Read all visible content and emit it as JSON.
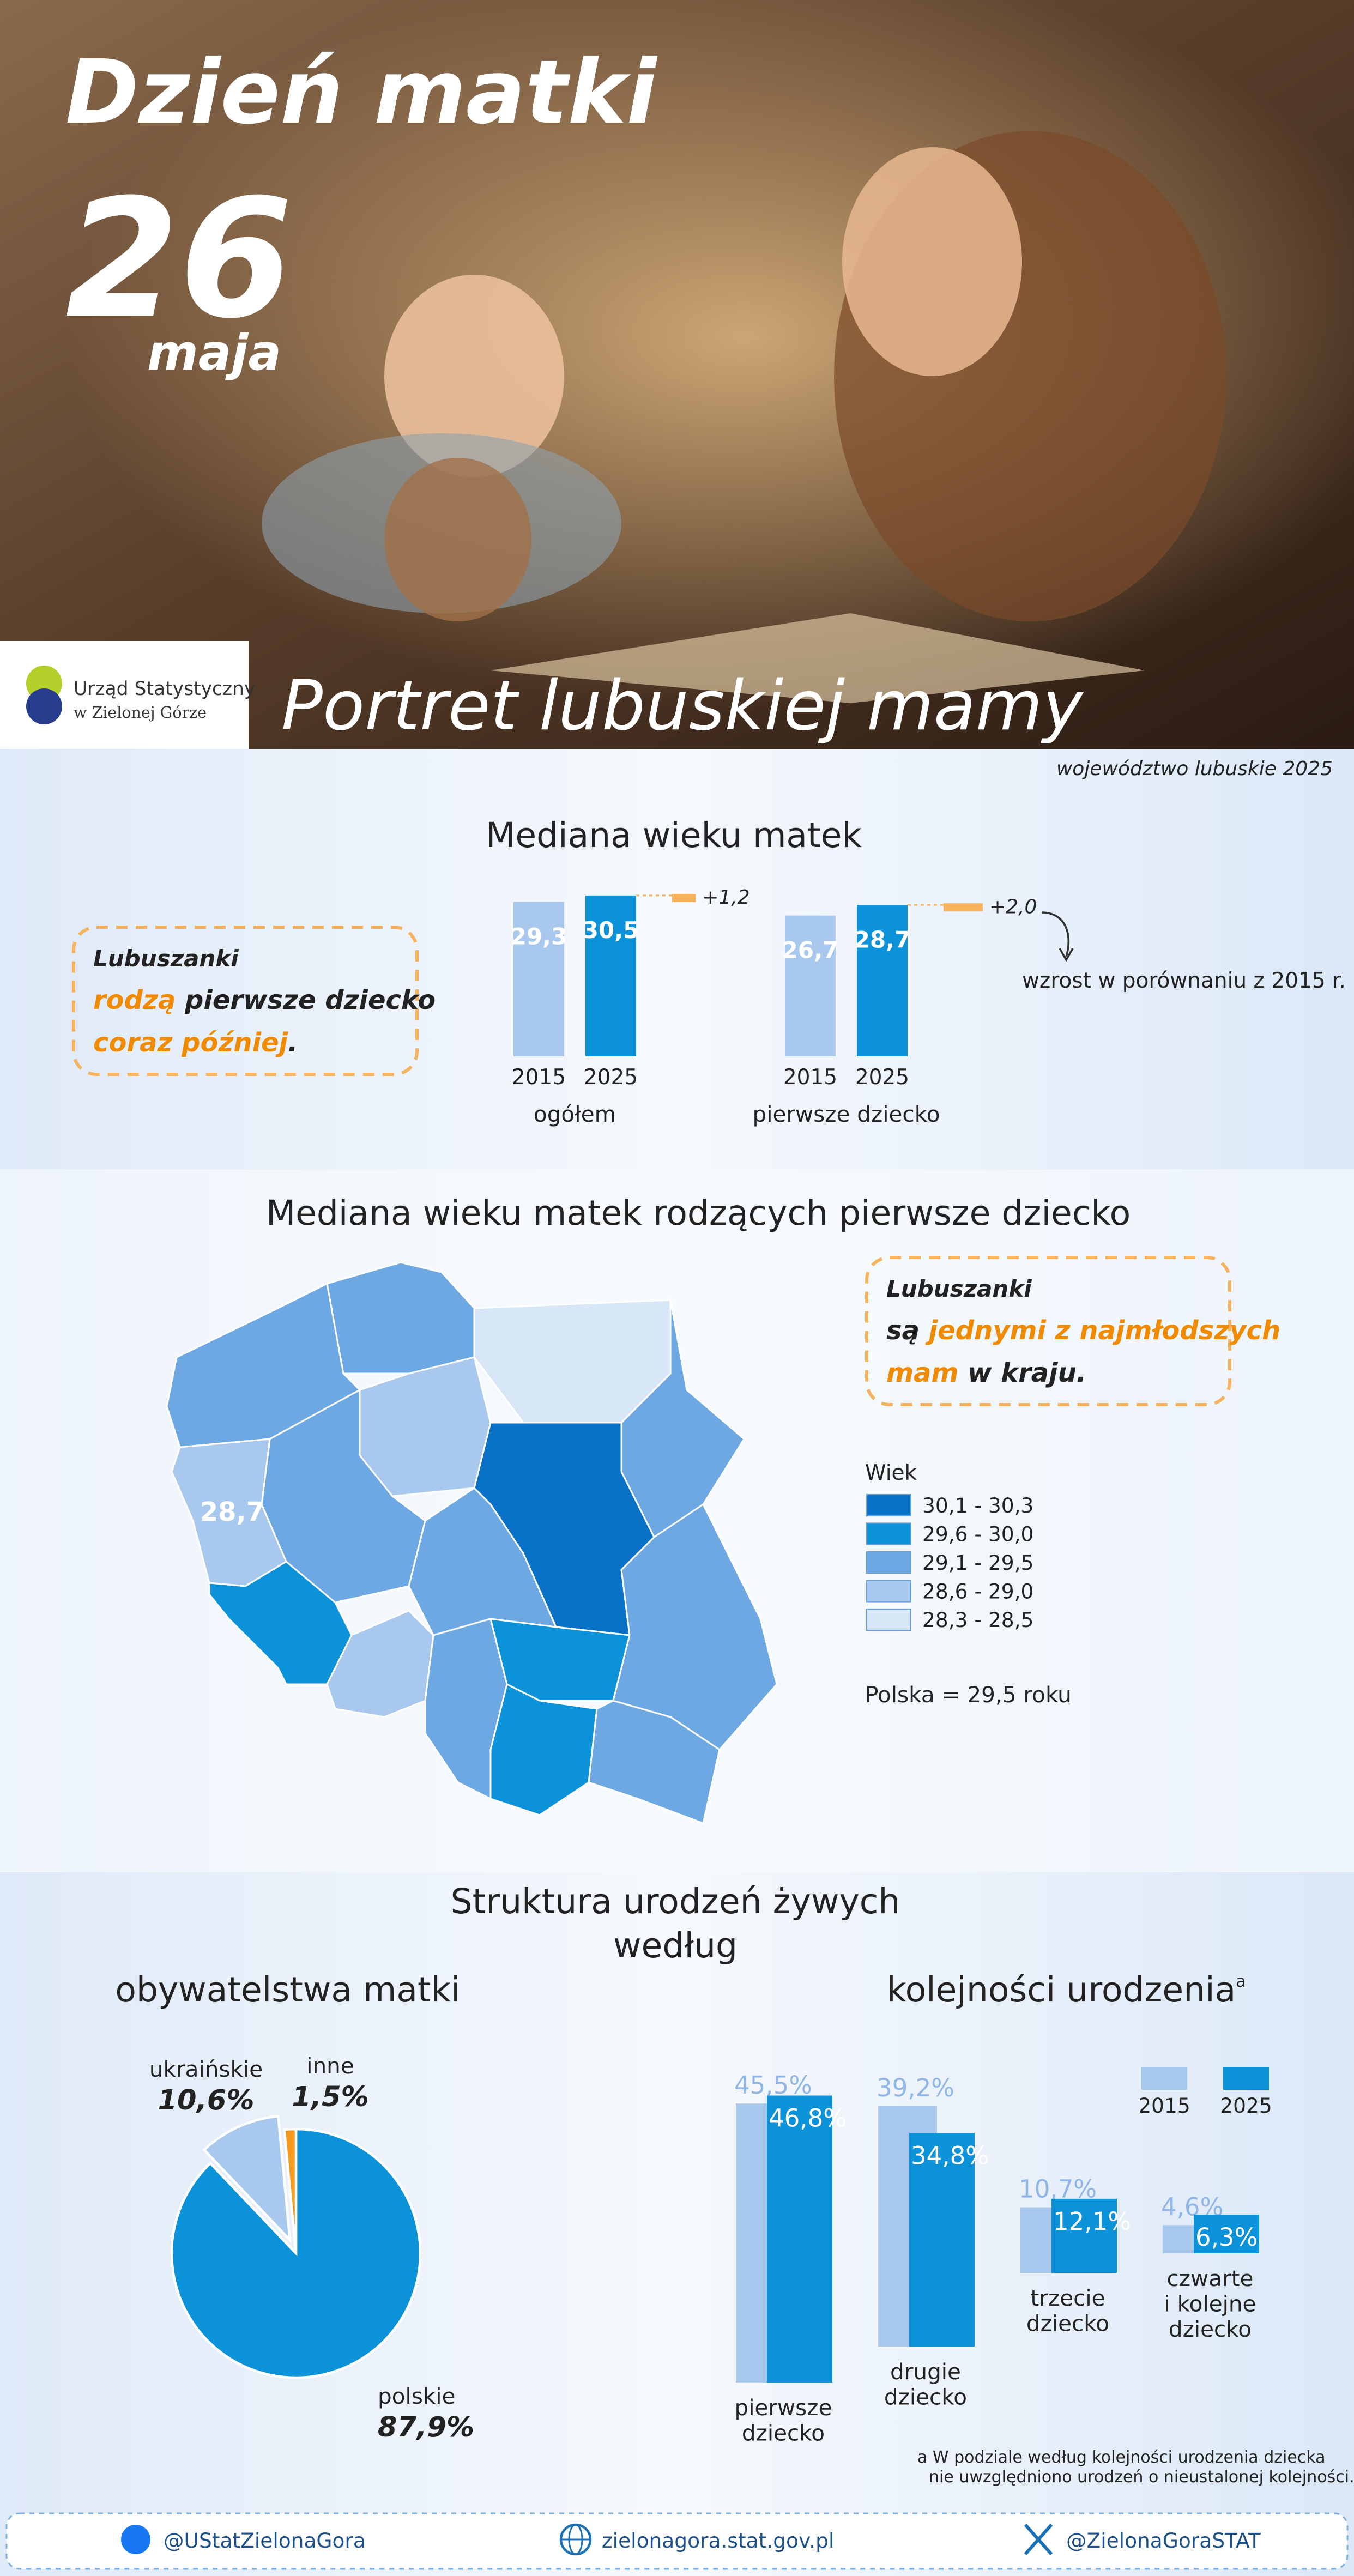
{
  "header": {
    "title": "Dzień matki",
    "day": "26",
    "month": "maja",
    "subtitle": "Portret lubuskiej mamy",
    "logo": [
      "Urząd Statystyczny",
      "w Zielonej Górze"
    ],
    "region": "województwo lubuskie 2025"
  },
  "callouts": [
    {
      "lines": [
        [
          {
            "text": "Lubuszanki",
            "highlight": false
          }
        ],
        [
          {
            "text": "rodzą",
            "highlight": true
          },
          {
            "text": " pierwsze dziecko",
            "highlight": false
          }
        ],
        [
          {
            "text": "coraz później",
            "highlight": true
          },
          {
            "text": ".",
            "highlight": false
          }
        ]
      ]
    },
    {
      "lines": [
        [
          {
            "text": "Lubuszanki",
            "highlight": false
          }
        ],
        [
          {
            "text": "są ",
            "highlight": false
          },
          {
            "text": "jednymi z najmłodszych",
            "highlight": true
          }
        ],
        [
          {
            "text": "mam",
            "highlight": true
          },
          {
            "text": " w kraju.",
            "highlight": false
          }
        ]
      ]
    }
  ],
  "map": {
    "title": "Mediana wieku matek rodzących pierwsze dziecko",
    "value": 28.7,
    "value_label": "28,7",
    "legend_title": "Wiek",
    "classes": [
      {
        "label": "30,1 - 30,3",
        "color": "#0a72c6"
      },
      {
        "label": "29,6 - 30,0",
        "color": "#0c92d8"
      },
      {
        "label": "29,1 - 29,5",
        "color": "#6ea8e2"
      },
      {
        "label": "28,6 - 29,0",
        "color": "#a9c8ee"
      },
      {
        "label": "28,3 - 28,5",
        "color": "#d8e7f7"
      }
    ],
    "note": "Polska = 29,5 roku"
  },
  "section_title": [
    "Struktura urodzeń żywych",
    "według"
  ],
  "chart_data": [
    {
      "type": "bar",
      "title": "Mediana wieku matek",
      "categories": [
        [
          "ogółem"
        ],
        [
          "pierwsze dziecko"
        ]
      ],
      "series": [
        {
          "name": "2015",
          "color": "#a9c8ee",
          "values": [
            29.3,
            26.7
          ],
          "value_labels": [
            "29,3",
            "26,7"
          ]
        },
        {
          "name": "2025",
          "color": "#0c92d8",
          "values": [
            30.5,
            28.7
          ],
          "value_labels": [
            "30,5",
            "28,7"
          ]
        },
        {
          "name": "wzrost w porównaniu z 2015 r.",
          "color": "#f6b25c",
          "values": [
            1.2,
            2.0
          ],
          "value_labels": [
            "+1,2",
            "+2,0"
          ]
        }
      ],
      "ylim": [
        0,
        31
      ]
    },
    {
      "type": "pie",
      "title": "obywatelstwa matki",
      "categories": [
        "polskie",
        "ukraińskie",
        "inne"
      ],
      "values": [
        87.9,
        10.6,
        1.5
      ],
      "value_labels": [
        "87,9%",
        "10,6%",
        "1,5%"
      ],
      "colors": [
        "#0c92d8",
        "#a9c8ee",
        "#f39a1e"
      ]
    },
    {
      "type": "bar",
      "title": "kolejności urodzenia",
      "title_note": "a",
      "categories": [
        [
          "pierwsze",
          "dziecko"
        ],
        [
          "drugie",
          "dziecko"
        ],
        [
          "trzecie",
          "dziecko"
        ],
        [
          "czwarte",
          "i kolejne",
          "dziecko"
        ]
      ],
      "series": [
        {
          "name": "2015",
          "color": "#a9c8ee",
          "values": [
            45.5,
            39.2,
            10.7,
            4.6
          ],
          "value_labels": [
            "45,5%",
            "39,2%",
            "10,7%",
            "4,6%"
          ]
        },
        {
          "name": "2025",
          "color": "#0c92d8",
          "values": [
            46.8,
            34.8,
            12.1,
            6.3
          ],
          "value_labels": [
            "46,8%",
            "34,8%",
            "12,1%",
            "6,3%"
          ]
        }
      ],
      "ylim": [
        0,
        50
      ]
    }
  ],
  "footnote": [
    "a W podziale według kolejności urodzenia dziecka",
    "nie uwzględniono urodzeń o nieustalonej kolejności."
  ],
  "footer": [
    "@UStatZielonaGora",
    "zielonagora.stat.gov.pl",
    "@ZielonaGoraSTAT"
  ]
}
